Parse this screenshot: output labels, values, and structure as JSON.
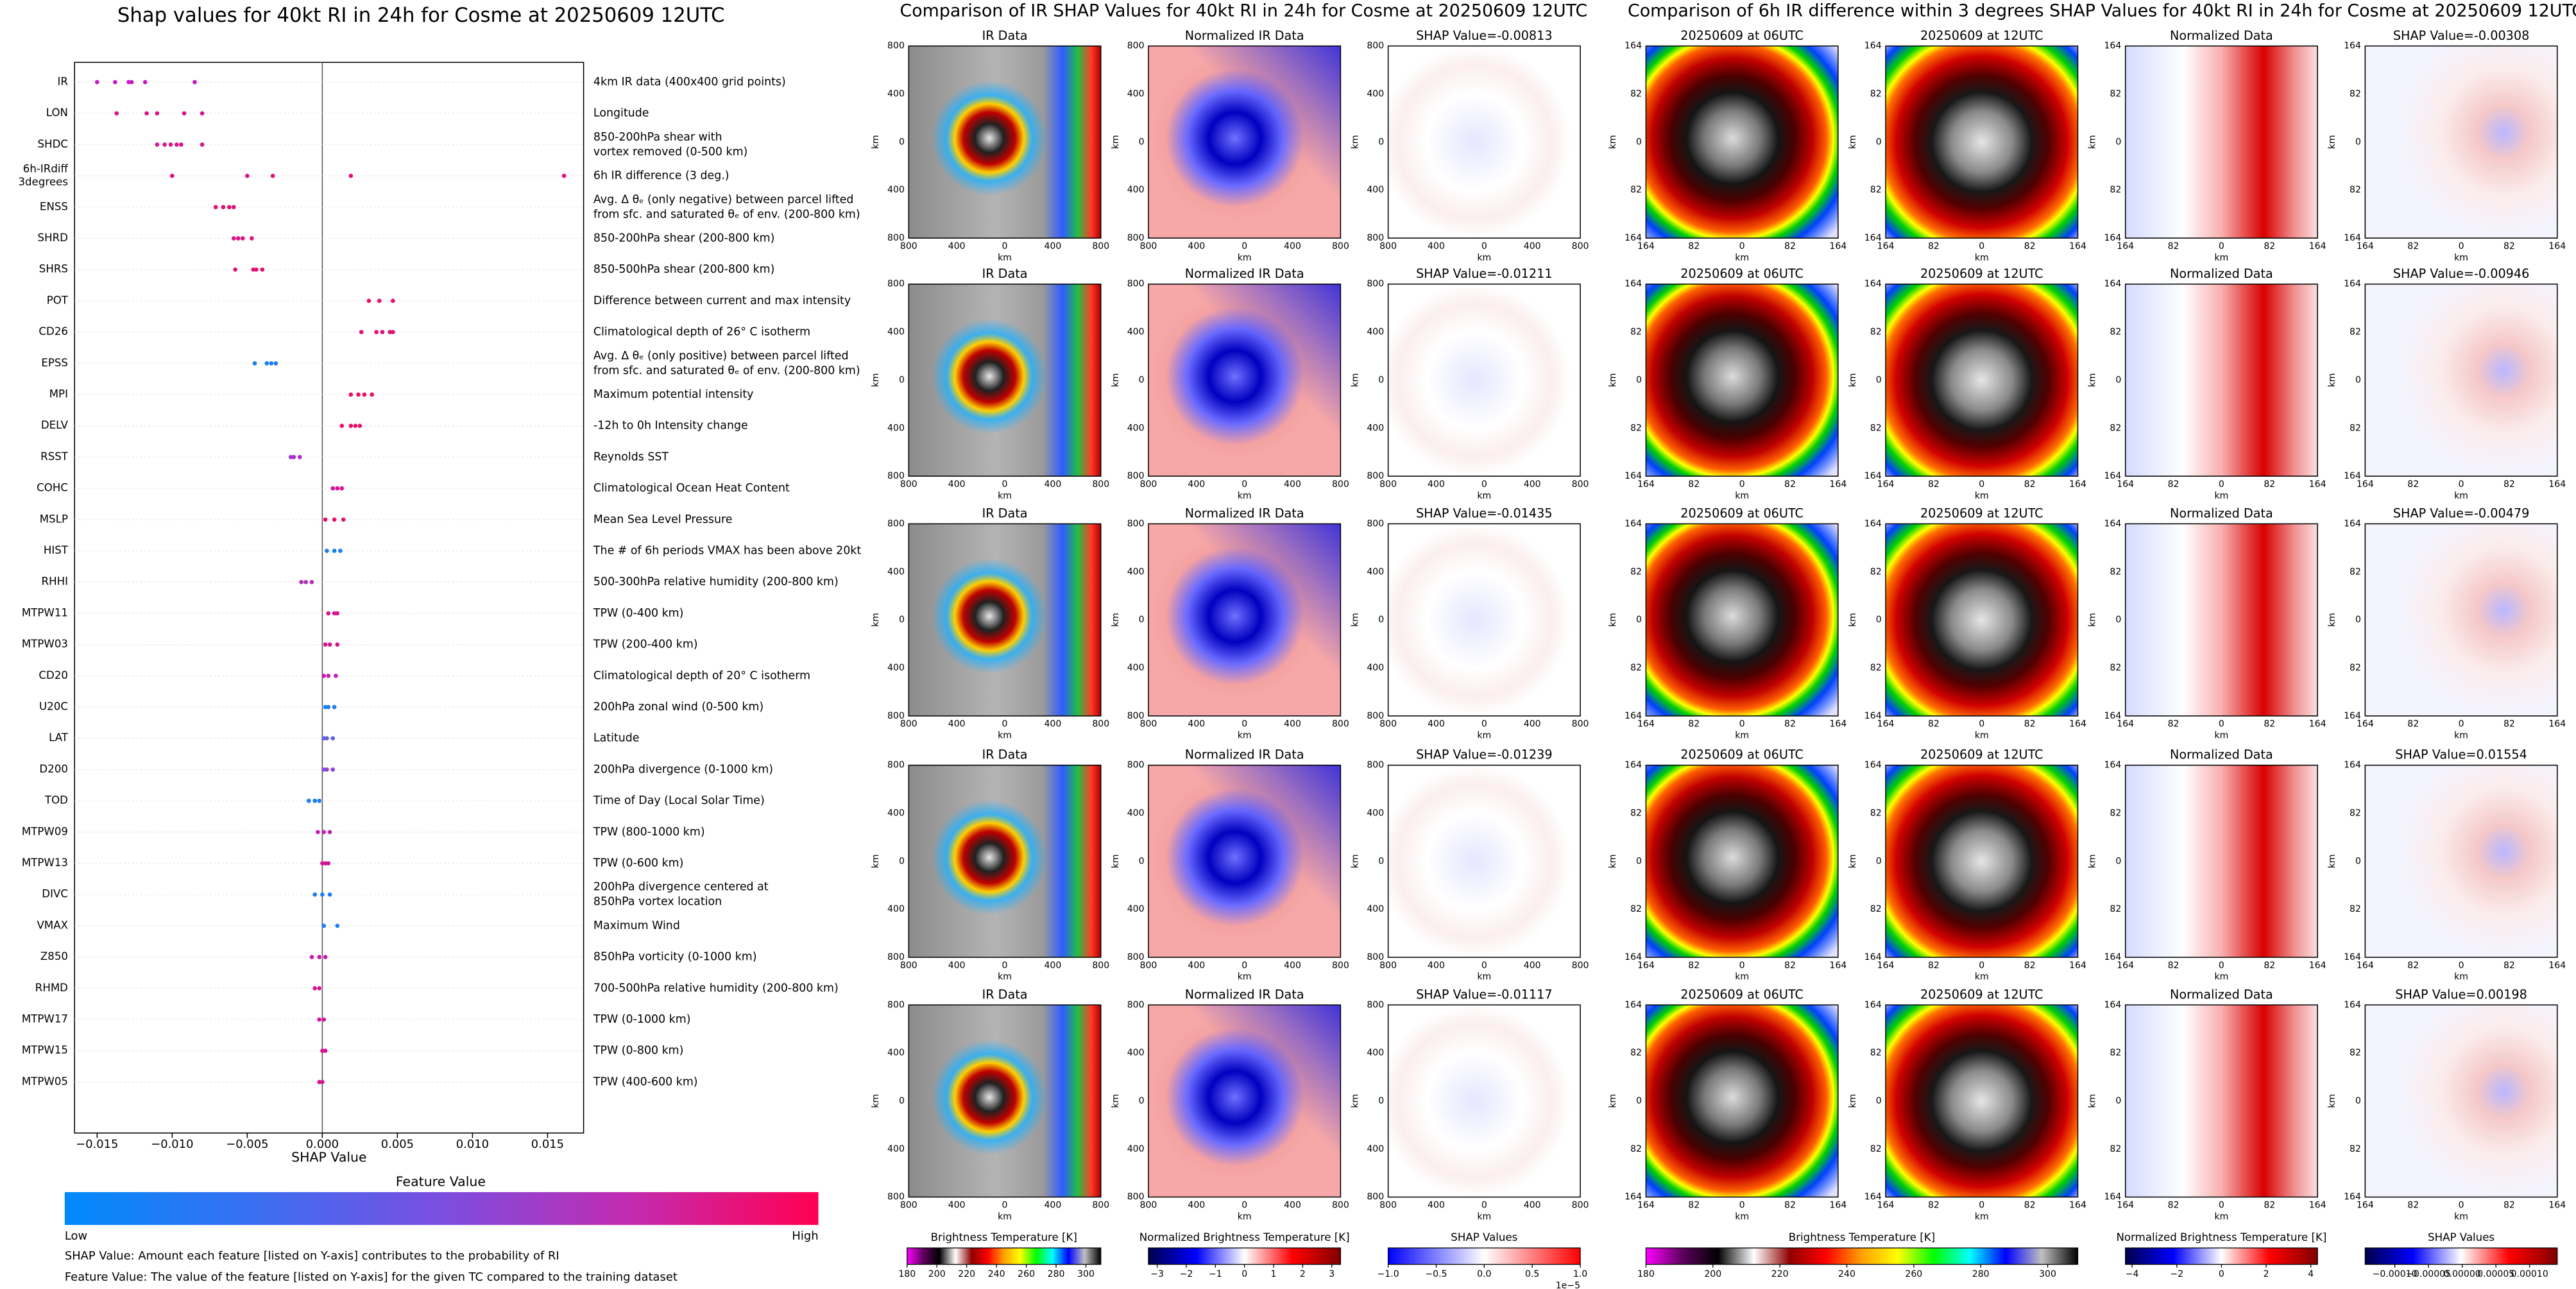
{
  "chart_data": {
    "type": "scatter",
    "title": "Shap values for 40kt RI in 24h for Cosme at 20250609 12UTC",
    "xlabel": "SHAP Value",
    "xlim": [
      -0.0165,
      0.0174
    ],
    "xticks": [
      {
        "value": -0.015,
        "label": "−0.015"
      },
      {
        "value": -0.01,
        "label": "−0.010"
      },
      {
        "value": -0.005,
        "label": "−0.005"
      },
      {
        "value": 0,
        "label": "0.000"
      },
      {
        "value": 0.005,
        "label": "0.005"
      },
      {
        "value": 0.01,
        "label": "0.010"
      },
      {
        "value": 0.015,
        "label": "0.015"
      }
    ],
    "series": [
      {
        "name": "IR",
        "description": [
          "4km IR data (400x400 grid points)"
        ],
        "color": "#c41cc0",
        "values": [
          -0.015,
          -0.0138,
          -0.0129,
          -0.0127,
          -0.0118,
          -0.0085
        ]
      },
      {
        "name": "LON",
        "description": [
          "Longitude"
        ],
        "color": "#d8128f",
        "values": [
          -0.0137,
          -0.0117,
          -0.011,
          -0.0092,
          -0.008
        ]
      },
      {
        "name": "SHDC",
        "description": [
          "850-200hPa shear with",
          "vortex removed (0-500 km)"
        ],
        "color": "#d8148f",
        "values": [
          -0.011,
          -0.0105,
          -0.0101,
          -0.0097,
          -0.0094,
          -0.008
        ]
      },
      {
        "name": [
          "6h-IRdiff",
          "3degrees"
        ],
        "description": [
          "6h IR difference (3 deg.)"
        ],
        "color": "#e10f79",
        "values": [
          -0.01,
          -0.005,
          -0.0033,
          0.0019,
          0.0161
        ]
      },
      {
        "name": "ENSS",
        "description": [
          "Avg. Δ θₑ (only negative) between parcel lifted",
          "from sfc. and saturated θₑ of env. (200-800 km)"
        ],
        "color": "#e21070",
        "values": [
          -0.0071,
          -0.0066,
          -0.0062,
          -0.0059
        ]
      },
      {
        "name": "SHRD",
        "description": [
          "850-200hPa shear (200-800 km)"
        ],
        "color": "#de1288",
        "values": [
          -0.0059,
          -0.0056,
          -0.0053,
          -0.0047
        ]
      },
      {
        "name": "SHRS",
        "description": [
          "850-500hPa shear (200-800 km)"
        ],
        "color": "#e31070",
        "values": [
          -0.0058,
          -0.0046,
          -0.0044,
          -0.004
        ]
      },
      {
        "name": "POT",
        "description": [
          "Difference between current and max intensity"
        ],
        "color": "#e8106a",
        "values": [
          0.0031,
          0.0038,
          0.0047
        ]
      },
      {
        "name": "CD26",
        "description": [
          "Climatological depth of 26° C isotherm"
        ],
        "color": "#e2106f",
        "values": [
          0.0026,
          0.0036,
          0.004,
          0.0045,
          0.0047
        ]
      },
      {
        "name": "EPSS",
        "description": [
          "Avg. Δ θₑ (only positive) between parcel lifted",
          "from sfc. and saturated θₑ of env. (200-800 km)"
        ],
        "color": "#1a7ff0",
        "values": [
          -0.0045,
          -0.0037,
          -0.0034,
          -0.0031
        ]
      },
      {
        "name": "MPI",
        "description": [
          "Maximum potential intensity"
        ],
        "color": "#e81068",
        "values": [
          0.0019,
          0.0024,
          0.0028,
          0.0033
        ]
      },
      {
        "name": "DELV",
        "description": [
          "-12h to 0h Intensity change"
        ],
        "color": "#ea0f66",
        "values": [
          0.0013,
          0.0019,
          0.0022,
          0.0025
        ]
      },
      {
        "name": "RSST",
        "description": [
          "Reynolds SST"
        ],
        "color": "#a633cc",
        "values": [
          -0.0021,
          -0.0019,
          -0.0015
        ]
      },
      {
        "name": "COHC",
        "description": [
          "Climatological Ocean Heat Content"
        ],
        "color": "#d71596",
        "values": [
          0.0007,
          0.001,
          0.0013
        ]
      },
      {
        "name": "MSLP",
        "description": [
          "Mean Sea Level Pressure"
        ],
        "color": "#e31070",
        "values": [
          0.0002,
          0.0008,
          0.0014
        ]
      },
      {
        "name": "HIST",
        "description": [
          "The # of 6h periods VMAX has been above 20kt"
        ],
        "color": "#1a7ff0",
        "values": [
          0.0003,
          0.0008,
          0.0012
        ]
      },
      {
        "name": "RHHI",
        "description": [
          "500-300hPa relative humidity (200-800 km)"
        ],
        "color": "#b42abf",
        "values": [
          -0.0014,
          -0.0011,
          -0.0007
        ]
      },
      {
        "name": "MTPW11",
        "description": [
          "TPW (0-400 km)"
        ],
        "color": "#d41695",
        "values": [
          0.0004,
          0.0008,
          0.001
        ]
      },
      {
        "name": "MTPW03",
        "description": [
          "TPW (200-400 km)"
        ],
        "color": "#da138a",
        "values": [
          0.0002,
          0.0005,
          0.001
        ]
      },
      {
        "name": "CD20",
        "description": [
          "Climatological depth of 20° C isotherm"
        ],
        "color": "#c81eb0",
        "values": [
          0.0001,
          0.0004,
          0.0009
        ]
      },
      {
        "name": "U20C",
        "description": [
          "200hPa zonal wind (0-500 km)"
        ],
        "color": "#1a7ff0",
        "values": [
          0.0002,
          0.0004,
          0.0008
        ]
      },
      {
        "name": "LAT",
        "description": [
          "Latitude"
        ],
        "color": "#5b5fe0",
        "values": [
          0.0001,
          0.0003,
          0.0007
        ]
      },
      {
        "name": "D200",
        "description": [
          "200hPa divergence (0-1000 km)"
        ],
        "color": "#8c45d6",
        "values": [
          0.0001,
          0.0003,
          0.0007
        ]
      },
      {
        "name": "TOD",
        "description": [
          "Time of Day (Local Solar Time)"
        ],
        "color": "#1a7ff0",
        "values": [
          -0.0009,
          -0.0005,
          -0.0002
        ]
      },
      {
        "name": "MTPW09",
        "description": [
          "TPW (800-1000 km)"
        ],
        "color": "#c11fb8",
        "values": [
          -0.0003,
          0.0001,
          0.0005
        ]
      },
      {
        "name": "MTPW13",
        "description": [
          "TPW (0-600 km)"
        ],
        "color": "#d21598",
        "values": [
          0,
          0.0002,
          0.0004
        ]
      },
      {
        "name": "DIVC",
        "description": [
          "200hPa divergence centered at",
          "850hPa vortex location"
        ],
        "color": "#1a7ff0",
        "values": [
          -0.0005,
          0,
          0.0005
        ]
      },
      {
        "name": "VMAX",
        "description": [
          "Maximum Wind"
        ],
        "color": "#1a7ff0",
        "values": [
          0.0001,
          0.001
        ]
      },
      {
        "name": "Z850",
        "description": [
          "850hPa vorticity (0-1000 km)"
        ],
        "color": "#c91cae",
        "values": [
          -0.0007,
          -0.0002,
          0.0002
        ]
      },
      {
        "name": "RHMD",
        "description": [
          "700-500hPa relative humidity (200-800 km)"
        ],
        "color": "#d81390",
        "values": [
          -0.0005,
          -0.0002
        ]
      },
      {
        "name": "MTPW17",
        "description": [
          "TPW (0-1000 km)"
        ],
        "color": "#d21599",
        "values": [
          -0.0002,
          0.0001
        ]
      },
      {
        "name": "MTPW15",
        "description": [
          "TPW (0-800 km)"
        ],
        "color": "#d81390",
        "values": [
          0,
          0.0002
        ]
      },
      {
        "name": "MTPW05",
        "description": [
          "TPW (400-600 km)"
        ],
        "color": "#d61393",
        "values": [
          -0.0002,
          0
        ]
      }
    ],
    "colorbar": {
      "label": "Feature Value",
      "low": "Low",
      "high": "High",
      "colors": [
        "#008afb",
        "#3a6ff2",
        "#7b4ee0",
        "#c22bb0",
        "#ff0052"
      ]
    },
    "notes": [
      "SHAP Value: Amount each feature [listed on Y-axis] contributes to the probability of RI",
      "Feature Value: The value of the feature [listed on Y-axis] for the given TC compared to the training dataset"
    ]
  },
  "ir_comparison": {
    "title": "Comparison of IR SHAP Values for 40kt RI in 24h for Cosme at 20250609 12UTC",
    "column_titles": [
      "IR Data",
      "Normalized IR Data"
    ],
    "shap_titles": [
      "SHAP Value=-0.00813",
      "SHAP Value=-0.01211",
      "SHAP Value=-0.01435",
      "SHAP Value=-0.01239",
      "SHAP Value=-0.01117"
    ],
    "tick_labels": [
      "800",
      "400",
      "0",
      "400",
      "800"
    ],
    "axis_label": "km",
    "colorbars": [
      {
        "label": "Brightness Temperature [K]",
        "lim": [
          180,
          310
        ],
        "ticks": [
          180,
          200,
          220,
          240,
          260,
          280,
          300
        ],
        "colors": [
          "#ff00ff",
          "#600060",
          "#000000",
          "#ffffff",
          "#900000",
          "#ff0000",
          "#ffa000",
          "#ffff00",
          "#00ff00",
          "#00ffff",
          "#0000ff",
          "#c0c0c0",
          "#000000"
        ]
      },
      {
        "label": "Normalized Brightness Temperature [K]",
        "lim": [
          -3.3,
          3.3
        ],
        "ticks": [
          {
            "value": -3,
            "label": "−3"
          },
          {
            "value": -2,
            "label": "−2"
          },
          {
            "value": -1,
            "label": "−1"
          },
          0,
          1,
          2,
          3
        ],
        "colors": [
          "#00004c",
          "#0000ff",
          "#ffffff",
          "#ff0000",
          "#800000"
        ]
      },
      {
        "label": "SHAP Values",
        "lim": [
          -1,
          1
        ],
        "ticks": [
          {
            "value": -1,
            "label": "−1.0"
          },
          {
            "value": -0.5,
            "label": "−0.5"
          },
          {
            "value": 0,
            "label": "0.0"
          },
          0.5,
          {
            "value": 1,
            "label": "1.0"
          }
        ],
        "offset_text": "1e−5",
        "colors": [
          "#0000ff",
          "#ffffff",
          "#ff0000"
        ]
      }
    ]
  },
  "diff_comparison": {
    "title": "Comparison of 6h IR difference within 3 degrees SHAP Values for 40kt RI in 24h for Cosme at 20250609 12UTC",
    "column_titles": [
      "20250609 at 06UTC",
      "20250609 at 12UTC",
      "Normalized Data"
    ],
    "shap_titles": [
      "SHAP Value=-0.00308",
      "SHAP Value=-0.00946",
      "SHAP Value=-0.00479",
      "SHAP Value=0.01554",
      "SHAP Value=0.00198"
    ],
    "tick_labels": [
      "164",
      "82",
      "0",
      "82",
      "164"
    ],
    "axis_label": "km",
    "colorbars": [
      {
        "label": "Brightness Temperature [K]",
        "lim": [
          180,
          309
        ],
        "ticks": [
          180,
          200,
          220,
          240,
          260,
          280,
          300
        ],
        "colors": [
          "#ff00ff",
          "#600060",
          "#000000",
          "#ffffff",
          "#900000",
          "#ff0000",
          "#ffa000",
          "#ffff00",
          "#00ff00",
          "#00ffff",
          "#0000ff",
          "#c0c0c0",
          "#000000"
        ]
      },
      {
        "label": "Normalized Brightness Temperature [K]",
        "lim": [
          -4.3,
          4.3
        ],
        "ticks": [
          {
            "value": -4,
            "label": "−4"
          },
          {
            "value": -2,
            "label": "−2"
          },
          0,
          2,
          4
        ],
        "colors": [
          "#00004c",
          "#0000ff",
          "#ffffff",
          "#ff0000",
          "#800000"
        ]
      },
      {
        "label": "SHAP Values",
        "lim": [
          -0.000144,
          0.000141
        ],
        "ticks": [
          {
            "value": -0.0001,
            "label": "−0.00010"
          },
          {
            "value": -5e-05,
            "label": "−0.00005"
          },
          {
            "value": 0,
            "label": "0.00000"
          },
          {
            "value": 5e-05,
            "label": "0.00005"
          },
          {
            "value": 0.0001,
            "label": "0.00010"
          }
        ],
        "colors": [
          "#00004c",
          "#0000ff",
          "#ffffff",
          "#ff0000",
          "#800000"
        ]
      }
    ]
  }
}
